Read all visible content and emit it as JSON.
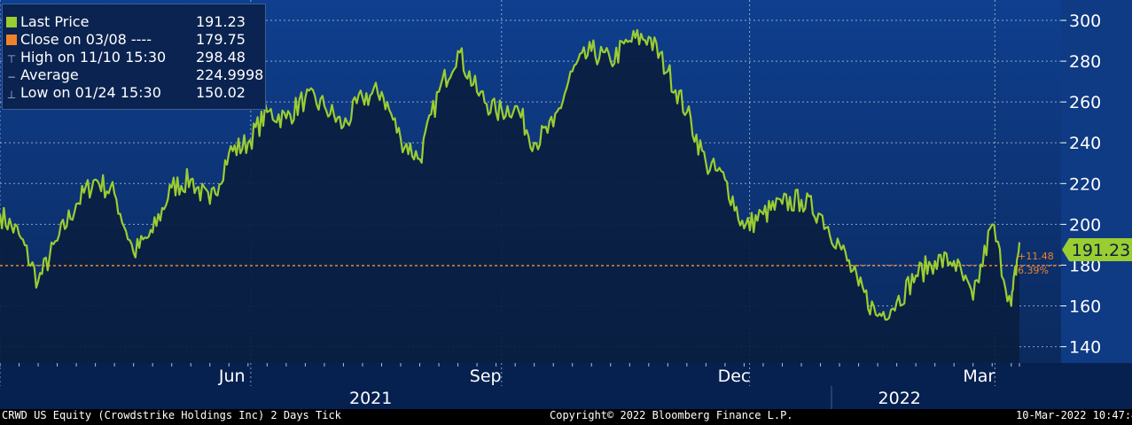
{
  "legend": {
    "rows": [
      {
        "label": "Last Price",
        "value": "191.23",
        "icon": "green-square"
      },
      {
        "label": "Close on 03/08 ----",
        "value": "179.75",
        "icon": "orange-square"
      },
      {
        "label": "High on 11/10 15:30",
        "value": "298.48",
        "icon": "high-marker-icon"
      },
      {
        "label": "Average",
        "value": "224.9998",
        "icon": "average-marker-icon"
      },
      {
        "label": "Low on 01/24 15:30",
        "value": "150.02",
        "icon": "low-marker-icon"
      }
    ]
  },
  "last_price_tag": "191.23",
  "change": {
    "abs": "+11.48",
    "pct": "6.39%"
  },
  "footer": {
    "left": "CRWD US Equity (Crowdstrike Holdings Inc) 2 Days  Tick",
    "center": "Copyright© 2022 Bloomberg Finance L.P.",
    "right": "10-Mar-2022 10:47:41"
  },
  "colors": {
    "line": "#9acd32",
    "close_line": "#f0832a",
    "bg_top": "#0f3f8f",
    "bg_bottom": "#0b2a5e",
    "fill": "#0a1e40"
  },
  "chart_data": {
    "type": "area",
    "yticks": [
      140,
      160,
      180,
      200,
      220,
      240,
      260,
      280,
      300
    ],
    "ylim": [
      132,
      310
    ],
    "y_axis_side": "right",
    "grid": true,
    "month_labels": [
      "Mar",
      "Jun",
      "Sep",
      "Dec",
      "Mar"
    ],
    "year_labels": [
      "2021",
      "2022"
    ],
    "close_reference": 179.75,
    "x": [
      "2021-03-01",
      "2021-03-08",
      "2021-03-15",
      "2021-03-22",
      "2021-03-29",
      "2021-04-05",
      "2021-04-12",
      "2021-04-19",
      "2021-04-26",
      "2021-05-03",
      "2021-05-10",
      "2021-05-17",
      "2021-05-24",
      "2021-05-31",
      "2021-06-07",
      "2021-06-14",
      "2021-06-21",
      "2021-06-28",
      "2021-07-05",
      "2021-07-12",
      "2021-07-19",
      "2021-07-26",
      "2021-08-02",
      "2021-08-09",
      "2021-08-16",
      "2021-08-23",
      "2021-08-30",
      "2021-09-06",
      "2021-09-13",
      "2021-09-20",
      "2021-09-27",
      "2021-10-04",
      "2021-10-11",
      "2021-10-18",
      "2021-10-25",
      "2021-11-01",
      "2021-11-08",
      "2021-11-15",
      "2021-11-22",
      "2021-11-29",
      "2021-12-06",
      "2021-12-13",
      "2021-12-20",
      "2021-12-27",
      "2022-01-03",
      "2022-01-10",
      "2022-01-17",
      "2022-01-24",
      "2022-01-31",
      "2022-02-07",
      "2022-02-14",
      "2022-02-21",
      "2022-02-28",
      "2022-03-07",
      "2022-03-10"
    ],
    "values": [
      205,
      195,
      172,
      192,
      210,
      222,
      215,
      186,
      196,
      218,
      222,
      210,
      235,
      240,
      255,
      252,
      262,
      258,
      248,
      262,
      265,
      242,
      232,
      265,
      285,
      265,
      255,
      258,
      240,
      248,
      275,
      285,
      280,
      290,
      292,
      275,
      255,
      230,
      222,
      198,
      205,
      210,
      212,
      205,
      190,
      170,
      155,
      162,
      175,
      182,
      182,
      163,
      200,
      160,
      191.23
    ]
  }
}
